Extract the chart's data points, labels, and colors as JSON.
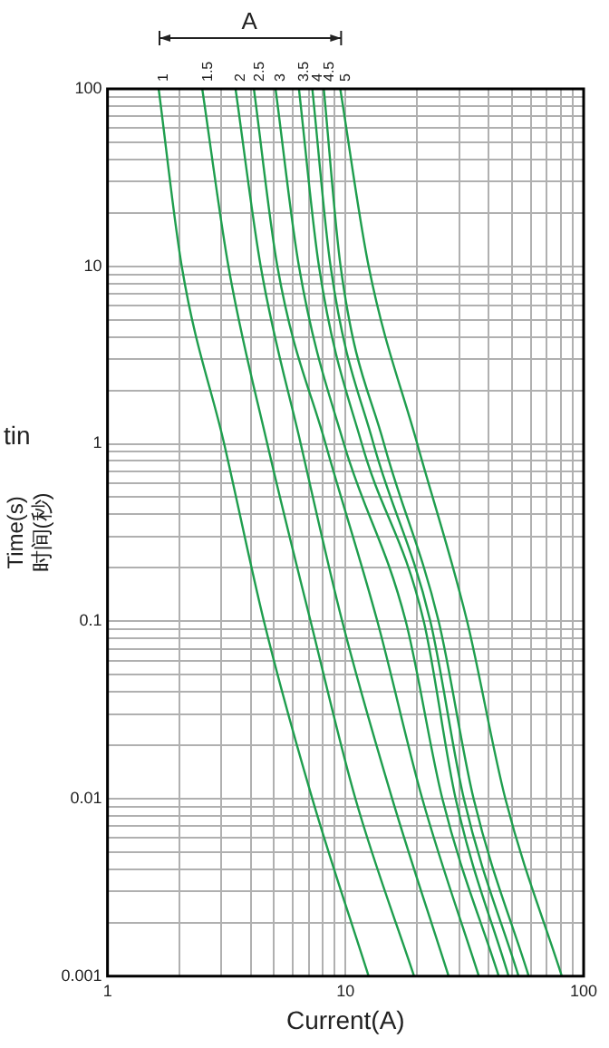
{
  "chart_data": {
    "type": "line",
    "xlabel": "Current(A)",
    "ylabel": "Time(s)\n时间(秒)",
    "legend_title": "A",
    "annotations": [
      "tin"
    ],
    "log": "xy",
    "grid": true,
    "marker": "none",
    "line_style": "solid",
    "xlim": [
      1,
      100
    ],
    "ylim": [
      0.001,
      100
    ],
    "xticks": [
      1,
      {
        "value": 2,
        "label": null
      },
      {
        "value": 3,
        "label": null
      },
      {
        "value": 4,
        "label": null
      },
      {
        "value": 5,
        "label": null
      },
      {
        "value": 6,
        "label": null
      },
      {
        "value": 7,
        "label": null
      },
      {
        "value": 8,
        "label": null
      },
      {
        "value": 9,
        "label": null
      },
      10,
      {
        "value": 20,
        "label": null
      },
      {
        "value": 30,
        "label": null
      },
      {
        "value": 40,
        "label": null
      },
      {
        "value": 50,
        "label": null
      },
      {
        "value": 60,
        "label": null
      },
      {
        "value": 70,
        "label": null
      },
      {
        "value": 80,
        "label": null
      },
      {
        "value": 90,
        "label": null
      },
      100
    ],
    "yticks": [
      0.001,
      {
        "value": 0.002,
        "label": null
      },
      {
        "value": 0.003,
        "label": null
      },
      {
        "value": 0.004,
        "label": null
      },
      {
        "value": 0.005,
        "label": null
      },
      {
        "value": 0.006,
        "label": null
      },
      {
        "value": 0.007,
        "label": null
      },
      {
        "value": 0.008,
        "label": null
      },
      {
        "value": 0.009,
        "label": null
      },
      0.01,
      {
        "value": 0.02,
        "label": null
      },
      {
        "value": 0.03,
        "label": null
      },
      {
        "value": 0.04,
        "label": null
      },
      {
        "value": 0.05,
        "label": null
      },
      {
        "value": 0.06,
        "label": null
      },
      {
        "value": 0.07,
        "label": null
      },
      {
        "value": 0.08,
        "label": null
      },
      {
        "value": 0.09,
        "label": null
      },
      0.1,
      {
        "value": 0.2,
        "label": null
      },
      {
        "value": 0.3,
        "label": null
      },
      {
        "value": 0.4,
        "label": null
      },
      {
        "value": 0.5,
        "label": null
      },
      {
        "value": 0.6,
        "label": null
      },
      {
        "value": 0.7,
        "label": null
      },
      {
        "value": 0.8,
        "label": null
      },
      {
        "value": 0.9,
        "label": null
      },
      1,
      {
        "value": 2,
        "label": null
      },
      {
        "value": 3,
        "label": null
      },
      {
        "value": 4,
        "label": null
      },
      {
        "value": 5,
        "label": null
      },
      {
        "value": 6,
        "label": null
      },
      {
        "value": 7,
        "label": null
      },
      {
        "value": 8,
        "label": null
      },
      {
        "value": 9,
        "label": null
      },
      10,
      {
        "value": 20,
        "label": null
      },
      {
        "value": 30,
        "label": null
      },
      {
        "value": 40,
        "label": null
      },
      {
        "value": 50,
        "label": null
      },
      {
        "value": 60,
        "label": null
      },
      {
        "value": 70,
        "label": null
      },
      {
        "value": 80,
        "label": null
      },
      {
        "value": 90,
        "label": null
      },
      100
    ],
    "series": [
      {
        "name": "1",
        "color": "#1f9e4e",
        "x": [
          1.64,
          2.05,
          3.09,
          4.54,
          7.25,
          12.5
        ],
        "values": [
          100,
          10,
          1,
          0.1,
          0.01,
          0.001
        ]
      },
      {
        "name": "1.5",
        "color": "#1f9e4e",
        "x": [
          2.5,
          3.22,
          4.69,
          7.13,
          11.0,
          19.4
        ],
        "values": [
          100,
          10,
          1,
          0.1,
          0.01,
          0.001
        ]
      },
      {
        "name": "2",
        "color": "#1f9e4e",
        "x": [
          3.45,
          4.4,
          6.48,
          9.68,
          15.7,
          27.1
        ],
        "values": [
          100,
          10,
          1,
          0.1,
          0.01,
          0.001
        ]
      },
      {
        "name": "2.5",
        "color": "#1f9e4e",
        "x": [
          4.12,
          5.17,
          8.24,
          13.6,
          21.0,
          36.3
        ],
        "values": [
          100,
          10,
          1,
          0.1,
          0.01,
          0.001
        ]
      },
      {
        "name": "3",
        "color": "#1f9e4e",
        "x": [
          5.08,
          6.37,
          9.84,
          17.9,
          25.5,
          44
        ],
        "values": [
          100,
          10,
          1,
          0.1,
          0.01,
          0.001
        ]
      },
      {
        "name": "3.5",
        "color": "#1f9e4e",
        "x": [
          6.37,
          7.73,
          11.7,
          21.3,
          29.0,
          48.4
        ],
        "values": [
          100,
          10,
          1,
          0.1,
          0.01,
          0.001
        ]
      },
      {
        "name": "4",
        "color": "#1f9e4e",
        "x": [
          7.25,
          8.65,
          13.1,
          22.7,
          31.4,
          53.3
        ],
        "values": [
          100,
          10,
          1,
          0.1,
          0.01,
          0.001
        ]
      },
      {
        "name": "4.5",
        "color": "#1f9e4e",
        "x": [
          8.1,
          9.53,
          14.5,
          24.6,
          34.5,
          58.8
        ],
        "values": [
          100,
          10,
          1,
          0.1,
          0.01,
          0.001
        ]
      },
      {
        "name": "5",
        "color": "#1f9e4e",
        "x": [
          9.5,
          12.5,
          20.0,
          32.4,
          46.9,
          81
        ],
        "values": [
          100,
          10,
          1,
          0.1,
          0.01,
          0.001
        ]
      }
    ]
  }
}
